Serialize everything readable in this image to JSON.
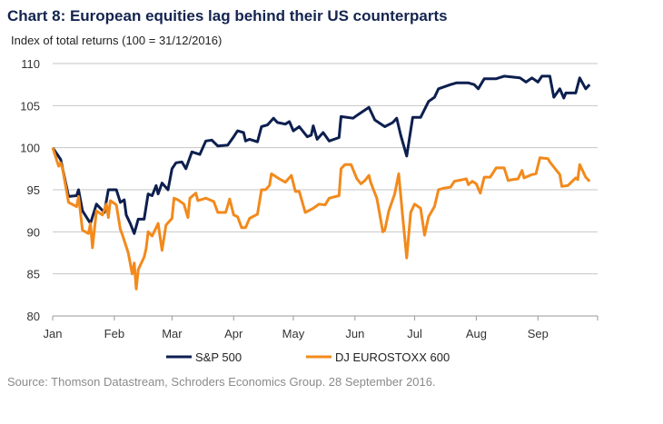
{
  "chart_data": {
    "type": "line",
    "title": "Chart 8: European equities lag behind their US counterparts",
    "ylabel": "Index of total returns (100 = 31/12/2016)",
    "xlabel": "",
    "ylim": [
      80,
      110
    ],
    "yticks": [
      "80",
      "85",
      "90",
      "95",
      "100",
      "105",
      "110"
    ],
    "xlim": [
      "2016-01-01",
      "2016-10-01"
    ],
    "xticks": [
      {
        "label": "Jan",
        "date": "2016-01-01"
      },
      {
        "label": "Feb",
        "date": "2016-02-01"
      },
      {
        "label": "Mar",
        "date": "2016-03-01"
      },
      {
        "label": "Apr",
        "date": "2016-04-01"
      },
      {
        "label": "May",
        "date": "2016-05-01"
      },
      {
        "label": "Jun",
        "date": "2016-06-01"
      },
      {
        "label": "Jul",
        "date": "2016-07-01"
      },
      {
        "label": "Aug",
        "date": "2016-08-01"
      },
      {
        "label": "Sep",
        "date": "2016-09-01"
      }
    ],
    "grid": true,
    "legend": "bottom",
    "series": [
      {
        "name": "S&P 500",
        "color": "#0d1f4f",
        "points": [
          [
            "2016-01-01",
            100
          ],
          [
            "2016-01-05",
            98.6
          ],
          [
            "2016-01-09",
            94.2
          ],
          [
            "2016-01-13",
            94.3
          ],
          [
            "2016-01-14",
            95
          ],
          [
            "2016-01-16",
            92.5
          ],
          [
            "2016-01-20",
            91
          ],
          [
            "2016-01-23",
            93.3
          ],
          [
            "2016-01-27",
            92.3
          ],
          [
            "2016-01-29",
            95
          ],
          [
            "2016-02-02",
            95
          ],
          [
            "2016-02-04",
            93.5
          ],
          [
            "2016-02-06",
            93.8
          ],
          [
            "2016-02-07",
            92
          ],
          [
            "2016-02-09",
            91
          ],
          [
            "2016-02-11",
            89.8
          ],
          [
            "2016-02-13",
            91.5
          ],
          [
            "2016-02-16",
            91.5
          ],
          [
            "2016-02-18",
            94.5
          ],
          [
            "2016-02-20",
            94.3
          ],
          [
            "2016-02-22",
            95.5
          ],
          [
            "2016-02-23",
            94.5
          ],
          [
            "2016-02-25",
            95.8
          ],
          [
            "2016-02-28",
            95
          ],
          [
            "2016-03-01",
            97.5
          ],
          [
            "2016-03-03",
            98.2
          ],
          [
            "2016-03-06",
            98.3
          ],
          [
            "2016-03-08",
            97.5
          ],
          [
            "2016-03-11",
            99.5
          ],
          [
            "2016-03-15",
            99.2
          ],
          [
            "2016-03-18",
            100.8
          ],
          [
            "2016-03-21",
            100.9
          ],
          [
            "2016-03-24",
            100.2
          ],
          [
            "2016-03-29",
            100.3
          ],
          [
            "2016-04-01",
            101.3
          ],
          [
            "2016-04-03",
            102
          ],
          [
            "2016-04-06",
            101.8
          ],
          [
            "2016-04-07",
            100.8
          ],
          [
            "2016-04-09",
            101
          ],
          [
            "2016-04-13",
            100.7
          ],
          [
            "2016-04-15",
            102.5
          ],
          [
            "2016-04-18",
            102.7
          ],
          [
            "2016-04-21",
            103.5
          ],
          [
            "2016-04-23",
            103
          ],
          [
            "2016-04-27",
            102.8
          ],
          [
            "2016-04-29",
            103.1
          ],
          [
            "2016-05-01",
            102
          ],
          [
            "2016-05-04",
            102.5
          ],
          [
            "2016-05-08",
            101.3
          ],
          [
            "2016-05-10",
            101.5
          ],
          [
            "2016-05-11",
            102.6
          ],
          [
            "2016-05-13",
            101
          ],
          [
            "2016-05-16",
            101.8
          ],
          [
            "2016-05-19",
            100.8
          ],
          [
            "2016-05-24",
            101.2
          ],
          [
            "2016-05-25",
            103.7
          ],
          [
            "2016-05-31",
            103.5
          ],
          [
            "2016-06-03",
            104
          ],
          [
            "2016-06-08",
            104.8
          ],
          [
            "2016-06-11",
            103.3
          ],
          [
            "2016-06-16",
            102.5
          ],
          [
            "2016-06-20",
            103
          ],
          [
            "2016-06-22",
            103.5
          ],
          [
            "2016-06-24",
            101.5
          ],
          [
            "2016-06-27",
            99
          ],
          [
            "2016-06-30",
            103.6
          ],
          [
            "2016-07-04",
            103.6
          ],
          [
            "2016-07-08",
            105.5
          ],
          [
            "2016-07-11",
            106
          ],
          [
            "2016-07-13",
            107
          ],
          [
            "2016-07-19",
            107.5
          ],
          [
            "2016-07-22",
            107.7
          ],
          [
            "2016-07-28",
            107.7
          ],
          [
            "2016-07-31",
            107.5
          ],
          [
            "2016-08-02",
            107
          ],
          [
            "2016-08-05",
            108.2
          ],
          [
            "2016-08-11",
            108.2
          ],
          [
            "2016-08-15",
            108.5
          ],
          [
            "2016-08-23",
            108.3
          ],
          [
            "2016-08-26",
            107.8
          ],
          [
            "2016-08-29",
            108.3
          ],
          [
            "2016-09-01",
            107.8
          ],
          [
            "2016-09-03",
            108.5
          ],
          [
            "2016-09-07",
            108.5
          ],
          [
            "2016-09-09",
            106
          ],
          [
            "2016-09-12",
            107
          ],
          [
            "2016-09-14",
            105.9
          ],
          [
            "2016-09-15",
            106.5
          ],
          [
            "2016-09-20",
            106.5
          ],
          [
            "2016-09-22",
            108.3
          ],
          [
            "2016-09-25",
            107
          ],
          [
            "2016-09-27",
            107.5
          ]
        ]
      },
      {
        "name": "DJ EUROSTOXX 600",
        "color": "#f28a1c",
        "points": [
          [
            "2016-01-01",
            100
          ],
          [
            "2016-01-04",
            97.8
          ],
          [
            "2016-01-05",
            98.2
          ],
          [
            "2016-01-06",
            97.5
          ],
          [
            "2016-01-09",
            93.5
          ],
          [
            "2016-01-13",
            93
          ],
          [
            "2016-01-14",
            94.2
          ],
          [
            "2016-01-16",
            90.2
          ],
          [
            "2016-01-19",
            89.8
          ],
          [
            "2016-01-20",
            91
          ],
          [
            "2016-01-21",
            88.1
          ],
          [
            "2016-01-23",
            92.5
          ],
          [
            "2016-01-26",
            92
          ],
          [
            "2016-01-28",
            93.3
          ],
          [
            "2016-01-29",
            91.7
          ],
          [
            "2016-01-30",
            93.7
          ],
          [
            "2016-02-02",
            93.2
          ],
          [
            "2016-02-04",
            90.3
          ],
          [
            "2016-02-05",
            89.7
          ],
          [
            "2016-02-08",
            87.5
          ],
          [
            "2016-02-10",
            85
          ],
          [
            "2016-02-11",
            86.3
          ],
          [
            "2016-02-12",
            83.2
          ],
          [
            "2016-02-13",
            85.5
          ],
          [
            "2016-02-16",
            87
          ],
          [
            "2016-02-17",
            88
          ],
          [
            "2016-02-18",
            90
          ],
          [
            "2016-02-20",
            89.5
          ],
          [
            "2016-02-23",
            91
          ],
          [
            "2016-02-25",
            87.8
          ],
          [
            "2016-02-27",
            90.8
          ],
          [
            "2016-03-01",
            91.6
          ],
          [
            "2016-03-02",
            94
          ],
          [
            "2016-03-04",
            93.8
          ],
          [
            "2016-03-07",
            93.3
          ],
          [
            "2016-03-09",
            91.7
          ],
          [
            "2016-03-10",
            94
          ],
          [
            "2016-03-13",
            94.6
          ],
          [
            "2016-03-14",
            93.7
          ],
          [
            "2016-03-18",
            94
          ],
          [
            "2016-03-22",
            93.6
          ],
          [
            "2016-03-24",
            92.3
          ],
          [
            "2016-03-28",
            92.3
          ],
          [
            "2016-03-30",
            93.9
          ],
          [
            "2016-04-01",
            92
          ],
          [
            "2016-04-03",
            91.8
          ],
          [
            "2016-04-05",
            90.5
          ],
          [
            "2016-04-07",
            90.5
          ],
          [
            "2016-04-09",
            91.6
          ],
          [
            "2016-04-13",
            92.1
          ],
          [
            "2016-04-15",
            95
          ],
          [
            "2016-04-17",
            95
          ],
          [
            "2016-04-19",
            95.5
          ],
          [
            "2016-04-20",
            96.9
          ],
          [
            "2016-04-24",
            96.3
          ],
          [
            "2016-04-27",
            95.9
          ],
          [
            "2016-04-30",
            96.7
          ],
          [
            "2016-05-02",
            94.8
          ],
          [
            "2016-05-04",
            94.8
          ],
          [
            "2016-05-07",
            92.3
          ],
          [
            "2016-05-11",
            92.8
          ],
          [
            "2016-05-14",
            93.3
          ],
          [
            "2016-05-17",
            93.2
          ],
          [
            "2016-05-19",
            94
          ],
          [
            "2016-05-24",
            94.3
          ],
          [
            "2016-05-25",
            97.5
          ],
          [
            "2016-05-27",
            98
          ],
          [
            "2016-05-30",
            98
          ],
          [
            "2016-06-02",
            96.3
          ],
          [
            "2016-06-04",
            95.7
          ],
          [
            "2016-06-06",
            96.1
          ],
          [
            "2016-06-08",
            96.7
          ],
          [
            "2016-06-09",
            95.8
          ],
          [
            "2016-06-12",
            94
          ],
          [
            "2016-06-13",
            92.7
          ],
          [
            "2016-06-15",
            90
          ],
          [
            "2016-06-16",
            90.2
          ],
          [
            "2016-06-18",
            92.5
          ],
          [
            "2016-06-21",
            94.5
          ],
          [
            "2016-06-23",
            96.9
          ],
          [
            "2016-06-25",
            91.8
          ],
          [
            "2016-06-27",
            86.9
          ],
          [
            "2016-06-29",
            92.3
          ],
          [
            "2016-07-01",
            93.3
          ],
          [
            "2016-07-04",
            92.8
          ],
          [
            "2016-07-06",
            89.6
          ],
          [
            "2016-07-08",
            91.8
          ],
          [
            "2016-07-11",
            93
          ],
          [
            "2016-07-13",
            95
          ],
          [
            "2016-07-16",
            95.2
          ],
          [
            "2016-07-19",
            95.3
          ],
          [
            "2016-07-21",
            96
          ],
          [
            "2016-07-27",
            96.3
          ],
          [
            "2016-07-28",
            95.6
          ],
          [
            "2016-07-30",
            96
          ],
          [
            "2016-08-01",
            95.7
          ],
          [
            "2016-08-03",
            94.6
          ],
          [
            "2016-08-05",
            96.5
          ],
          [
            "2016-08-08",
            96.5
          ],
          [
            "2016-08-11",
            97.6
          ],
          [
            "2016-08-15",
            97.6
          ],
          [
            "2016-08-17",
            96.1
          ],
          [
            "2016-08-19",
            96.2
          ],
          [
            "2016-08-22",
            96.3
          ],
          [
            "2016-08-24",
            97.3
          ],
          [
            "2016-08-25",
            96.4
          ],
          [
            "2016-08-29",
            96.8
          ],
          [
            "2016-08-31",
            96.9
          ],
          [
            "2016-09-02",
            98.8
          ],
          [
            "2016-09-06",
            98.7
          ],
          [
            "2016-09-07",
            98.3
          ],
          [
            "2016-09-09",
            97.7
          ],
          [
            "2016-09-12",
            96.8
          ],
          [
            "2016-09-13",
            95.4
          ],
          [
            "2016-09-16",
            95.5
          ],
          [
            "2016-09-20",
            96.4
          ],
          [
            "2016-09-21",
            96.2
          ],
          [
            "2016-09-22",
            98
          ],
          [
            "2016-09-25",
            96.5
          ],
          [
            "2016-09-27",
            96
          ]
        ]
      }
    ]
  },
  "source": "Source: Thomson Datastream, Schroders Economics Group. 28 September 2016."
}
